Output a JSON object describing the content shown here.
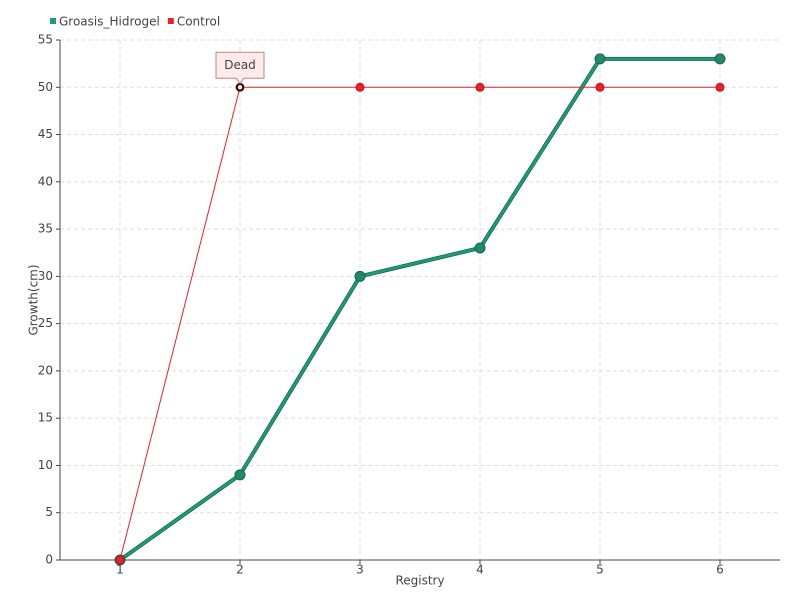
{
  "chart_data": {
    "type": "line",
    "x_label": "Registry",
    "y_label": "Growth(cm)",
    "x": [
      1,
      2,
      3,
      4,
      5,
      6
    ],
    "series": [
      {
        "name": "Groasis_Hidrogel",
        "color": "#1f9a78",
        "values": [
          0,
          9,
          30,
          33,
          53,
          53
        ]
      },
      {
        "name": "Control",
        "color": "#e8202a",
        "values": [
          0,
          50,
          50,
          50,
          50,
          50
        ]
      }
    ],
    "xlim": [
      0.5,
      6.5
    ],
    "xticks": [
      1,
      2,
      3,
      4,
      5,
      6
    ],
    "ylim": [
      0,
      55
    ],
    "yticks": [
      0,
      5,
      10,
      15,
      20,
      25,
      30,
      35,
      40,
      45,
      50,
      55
    ],
    "grid": true,
    "legend": "top-left",
    "annotations": [
      {
        "text": "Dead",
        "x": 2,
        "y": 50
      }
    ]
  }
}
